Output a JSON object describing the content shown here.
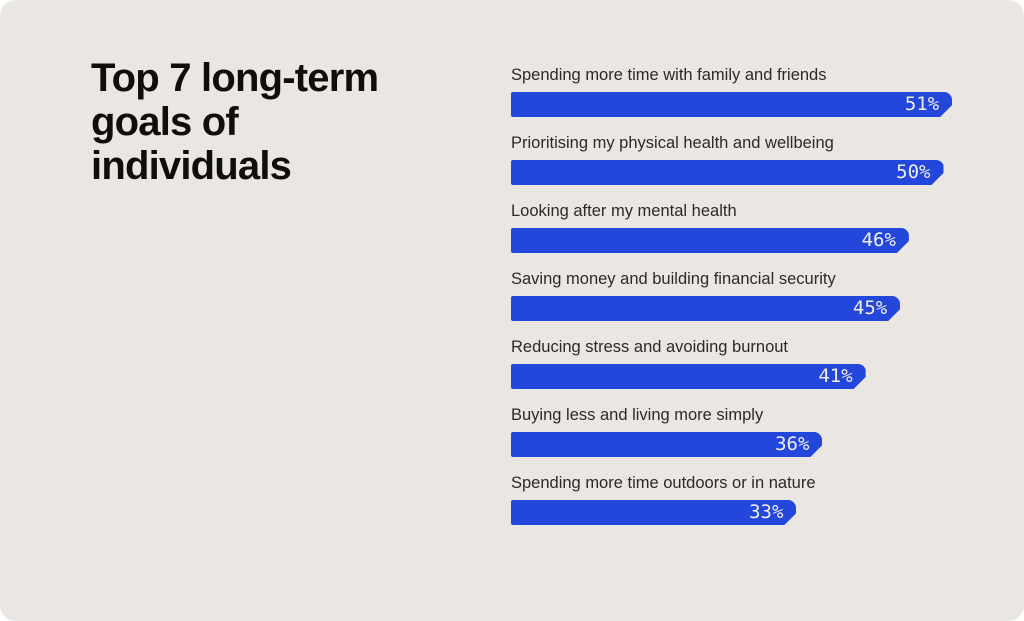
{
  "card": {
    "background_color": "#EAE7E2",
    "page_background_color": "#FFFFFF"
  },
  "title": "Top 7 long-term goals of individuals",
  "chart_data": {
    "type": "bar",
    "orientation": "horizontal",
    "title": "Top 7 long-term goals of individuals",
    "categories": [
      "Spending more time with family and friends",
      "Prioritising my physical health and wellbeing",
      "Looking after my mental health",
      "Saving money and building financial security",
      "Reducing stress and avoiding burnout",
      "Buying less and living more simply",
      "Spending more time outdoors or in nature"
    ],
    "values": [
      51,
      50,
      46,
      45,
      41,
      36,
      33
    ],
    "value_labels": [
      "51%",
      "50%",
      "46%",
      "45%",
      "41%",
      "36%",
      "33%"
    ],
    "unit": "%",
    "bar_color": "#2346DB",
    "category_label_color": "#2D2A26",
    "value_label_color": "#F1EFEA",
    "axis": "none",
    "gridlines": false,
    "legend": "none",
    "value_range": [
      0,
      51
    ]
  }
}
